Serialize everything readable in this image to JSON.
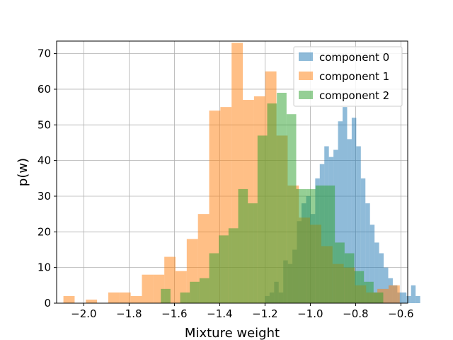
{
  "chart_data": {
    "type": "histogram",
    "xlabel": "Mixture weight",
    "ylabel": "p(w)",
    "xlim": [
      -2.12,
      -0.57
    ],
    "ylim": [
      0,
      73.5
    ],
    "x_ticks": [
      -2.0,
      -1.8,
      -1.6,
      -1.4,
      -1.2,
      -1.0,
      -0.8,
      -0.6
    ],
    "x_tick_labels": [
      "−2.0",
      "−1.8",
      "−1.6",
      "−1.4",
      "−1.2",
      "−1.0",
      "−0.8",
      "−0.6"
    ],
    "y_ticks": [
      0,
      10,
      20,
      30,
      40,
      50,
      60,
      70
    ],
    "y_tick_labels": [
      "0",
      "10",
      "20",
      "30",
      "40",
      "50",
      "60",
      "70"
    ],
    "grid": true,
    "legend_position": "top-right",
    "series": [
      {
        "name": "component 0",
        "color": "#1f77b4",
        "bin_start": -1.2,
        "bin_width": 0.02015,
        "values": [
          2,
          3,
          6,
          3,
          12,
          11,
          15,
          23,
          28,
          30,
          25,
          35,
          39,
          44,
          41,
          43,
          51,
          55,
          46,
          52,
          44,
          35,
          28,
          22,
          17,
          14,
          10,
          7,
          5,
          3,
          3,
          2,
          5,
          2
        ]
      },
      {
        "name": "component 1",
        "color": "#ff7f0e",
        "bin_start": -2.09,
        "bin_width": 0.0495,
        "values": [
          2,
          0,
          1,
          0,
          3,
          3,
          2,
          8,
          8,
          13,
          9,
          18,
          25,
          54,
          55,
          73,
          57,
          58,
          65,
          47,
          33,
          24,
          22,
          16,
          11,
          10,
          5,
          3,
          4,
          5
        ]
      },
      {
        "name": "component 2",
        "color": "#2ca02c",
        "bin_start": -1.66,
        "bin_width": 0.0427,
        "values": [
          4,
          0,
          3,
          6,
          7,
          14,
          19,
          21,
          32,
          28,
          47,
          56,
          59,
          53,
          32,
          32,
          33,
          33,
          17,
          14,
          9,
          6,
          3,
          0
        ]
      }
    ]
  }
}
